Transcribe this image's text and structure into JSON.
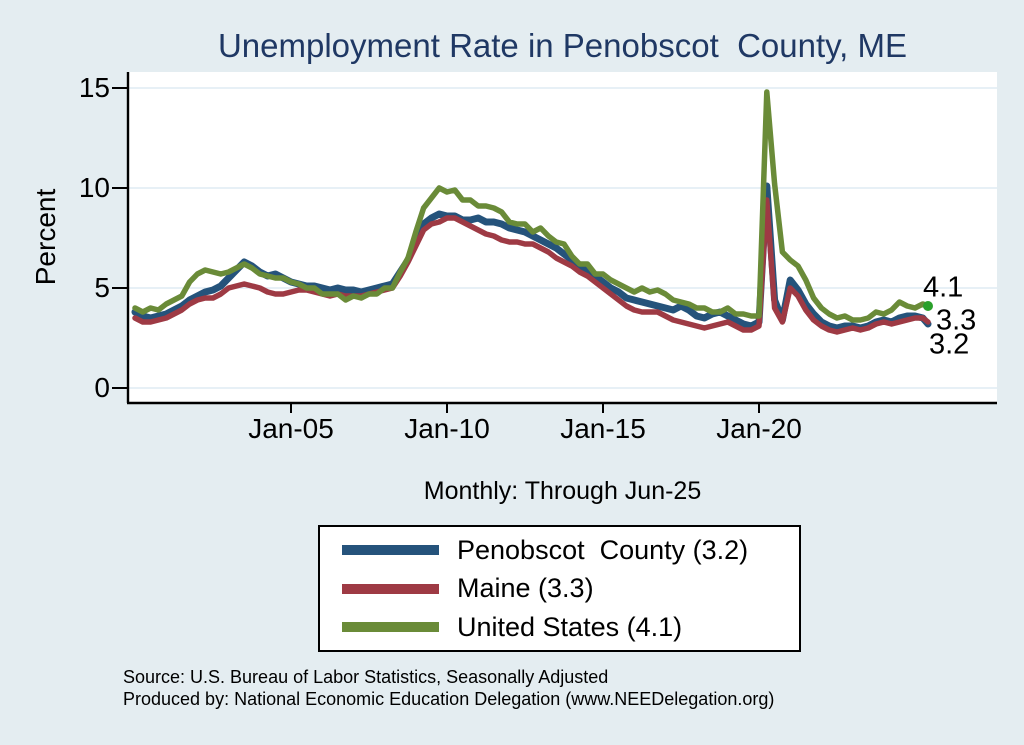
{
  "title": "Unemployment Rate in Penobscot  County, ME",
  "subtitle": "Monthly: Through Jun-25",
  "footer": {
    "line1": "Source: U.S. Bureau of Labor Statistics, Seasonally Adjusted",
    "line2": "Produced by: National Economic Education Delegation (www.NEEDelegation.org)"
  },
  "colors": {
    "background": "#e4edf1",
    "title_text": "#1f3864",
    "plot_background": "#ffffff",
    "gridline": "#dfebf3",
    "axis": "#000000",
    "penobscot_line": "#25537b",
    "maine_line": "#9e3a44",
    "us_line": "#6a8b38",
    "end_marker": "#2aa02a"
  },
  "legend": {
    "items": [
      {
        "label": "Penobscot  County (3.2)",
        "color": "#25537b"
      },
      {
        "label": "Maine (3.3)",
        "color": "#9e3a44"
      },
      {
        "label": "United States (4.1)",
        "color": "#6a8b38"
      }
    ]
  },
  "end_labels": [
    {
      "text": "4.1"
    },
    {
      "text": "3.3"
    },
    {
      "text": "3.2"
    }
  ],
  "chart_data": {
    "type": "line",
    "title": "Unemployment Rate in Penobscot County, ME",
    "subtitle": "Monthly: Through Jun-25",
    "xlabel": "",
    "ylabel": "Percent",
    "ylim": [
      0,
      15.5
    ],
    "xlim": [
      1999.78,
      2027.6
    ],
    "grid": "horizontal",
    "legend_position": "below",
    "y_ticks": [
      0,
      5,
      10,
      15
    ],
    "x_ticks": [
      {
        "value": 2005,
        "label": "Jan-05"
      },
      {
        "value": 2010,
        "label": "Jan-10"
      },
      {
        "value": 2015,
        "label": "Jan-15"
      },
      {
        "value": 2020,
        "label": "Jan-20"
      }
    ],
    "x": [
      2000,
      2000.25,
      2000.5,
      2000.75,
      2001,
      2001.25,
      2001.5,
      2001.75,
      2002,
      2002.25,
      2002.5,
      2002.75,
      2003,
      2003.25,
      2003.5,
      2003.75,
      2004,
      2004.25,
      2004.5,
      2004.75,
      2005,
      2005.25,
      2005.5,
      2005.75,
      2006,
      2006.25,
      2006.5,
      2006.75,
      2007,
      2007.25,
      2007.5,
      2007.75,
      2008,
      2008.25,
      2008.5,
      2008.75,
      2009,
      2009.25,
      2009.5,
      2009.75,
      2010,
      2010.25,
      2010.5,
      2010.75,
      2011,
      2011.25,
      2011.5,
      2011.75,
      2012,
      2012.25,
      2012.5,
      2012.75,
      2013,
      2013.25,
      2013.5,
      2013.75,
      2014,
      2014.25,
      2014.5,
      2014.75,
      2015,
      2015.25,
      2015.5,
      2015.75,
      2016,
      2016.25,
      2016.5,
      2016.75,
      2017,
      2017.25,
      2017.5,
      2017.75,
      2018,
      2018.25,
      2018.5,
      2018.75,
      2019,
      2019.25,
      2019.5,
      2019.75,
      2020,
      2020.25,
      2020.5,
      2020.75,
      2021,
      2021.25,
      2021.5,
      2021.75,
      2022,
      2022.25,
      2022.5,
      2022.75,
      2023,
      2023.25,
      2023.5,
      2023.75,
      2024,
      2024.25,
      2024.5,
      2024.75,
      2025,
      2025.25,
      2025.417
    ],
    "series": [
      {
        "name": "Penobscot County",
        "current_value": 3.2,
        "color": "#25537b",
        "stroke_width": 7,
        "values": [
          3.8,
          3.6,
          3.5,
          3.6,
          3.7,
          3.9,
          4.1,
          4.4,
          4.6,
          4.8,
          4.9,
          5.1,
          5.5,
          5.9,
          6.3,
          6.1,
          5.8,
          5.6,
          5.7,
          5.5,
          5.3,
          5.2,
          5.1,
          5.1,
          5.0,
          4.9,
          5.0,
          4.9,
          4.9,
          4.8,
          4.9,
          5.0,
          5.1,
          5.2,
          5.8,
          6.4,
          7.3,
          8.2,
          8.5,
          8.7,
          8.6,
          8.6,
          8.4,
          8.4,
          8.5,
          8.3,
          8.3,
          8.2,
          8.0,
          7.9,
          7.8,
          7.6,
          7.4,
          7.2,
          7.0,
          6.7,
          6.4,
          6.1,
          5.9,
          5.6,
          5.3,
          5.0,
          4.8,
          4.5,
          4.4,
          4.3,
          4.2,
          4.1,
          4.0,
          3.9,
          4.1,
          3.9,
          3.6,
          3.5,
          3.7,
          3.8,
          3.6,
          3.4,
          3.2,
          3.1,
          3.3,
          10.1,
          4.4,
          3.4,
          5.4,
          4.9,
          4.2,
          3.7,
          3.3,
          3.1,
          3.0,
          3.1,
          3.1,
          3.0,
          3.1,
          3.3,
          3.4,
          3.3,
          3.5,
          3.6,
          3.6,
          3.5,
          3.2
        ]
      },
      {
        "name": "Maine",
        "current_value": 3.3,
        "color": "#9e3a44",
        "stroke_width": 5.5,
        "values": [
          3.5,
          3.3,
          3.3,
          3.4,
          3.5,
          3.7,
          3.9,
          4.2,
          4.4,
          4.5,
          4.5,
          4.7,
          5.0,
          5.1,
          5.2,
          5.1,
          5.0,
          4.8,
          4.7,
          4.7,
          4.8,
          4.9,
          4.9,
          4.8,
          4.7,
          4.6,
          4.7,
          4.6,
          4.6,
          4.6,
          4.7,
          4.8,
          4.9,
          5.0,
          5.6,
          6.3,
          7.1,
          7.9,
          8.2,
          8.3,
          8.5,
          8.5,
          8.3,
          8.1,
          7.9,
          7.7,
          7.6,
          7.4,
          7.3,
          7.3,
          7.2,
          7.2,
          7.0,
          6.8,
          6.5,
          6.3,
          6.1,
          5.8,
          5.6,
          5.3,
          5.0,
          4.7,
          4.4,
          4.1,
          3.9,
          3.8,
          3.8,
          3.8,
          3.6,
          3.4,
          3.3,
          3.2,
          3.1,
          3.0,
          3.1,
          3.2,
          3.3,
          3.1,
          2.9,
          2.9,
          3.1,
          9.4,
          4.0,
          3.3,
          5.0,
          4.6,
          3.9,
          3.4,
          3.1,
          2.9,
          2.8,
          2.9,
          3.0,
          2.9,
          3.0,
          3.2,
          3.3,
          3.2,
          3.3,
          3.4,
          3.5,
          3.5,
          3.3
        ]
      },
      {
        "name": "United States",
        "current_value": 4.1,
        "color": "#6a8b38",
        "stroke_width": 5.5,
        "end_marker": true,
        "end_marker_color": "#2aa02a",
        "values": [
          4.0,
          3.8,
          4.0,
          3.9,
          4.2,
          4.4,
          4.6,
          5.3,
          5.7,
          5.9,
          5.8,
          5.7,
          5.8,
          6.0,
          6.2,
          6.0,
          5.7,
          5.6,
          5.5,
          5.5,
          5.3,
          5.2,
          5.0,
          5.0,
          4.7,
          4.7,
          4.7,
          4.4,
          4.6,
          4.5,
          4.7,
          4.7,
          5.0,
          5.0,
          5.8,
          6.5,
          7.8,
          9.0,
          9.5,
          10.0,
          9.8,
          9.9,
          9.4,
          9.4,
          9.1,
          9.1,
          9.0,
          8.8,
          8.3,
          8.2,
          8.2,
          7.8,
          8.0,
          7.6,
          7.3,
          7.2,
          6.6,
          6.2,
          6.2,
          5.7,
          5.7,
          5.4,
          5.2,
          5.0,
          4.8,
          5.0,
          4.8,
          4.9,
          4.7,
          4.4,
          4.3,
          4.2,
          4.0,
          4.0,
          3.8,
          3.8,
          4.0,
          3.7,
          3.7,
          3.6,
          3.6,
          14.8,
          10.2,
          6.8,
          6.4,
          6.1,
          5.4,
          4.5,
          4.0,
          3.7,
          3.5,
          3.6,
          3.4,
          3.4,
          3.5,
          3.8,
          3.7,
          3.9,
          4.3,
          4.1,
          4.0,
          4.2,
          4.1
        ]
      }
    ]
  }
}
